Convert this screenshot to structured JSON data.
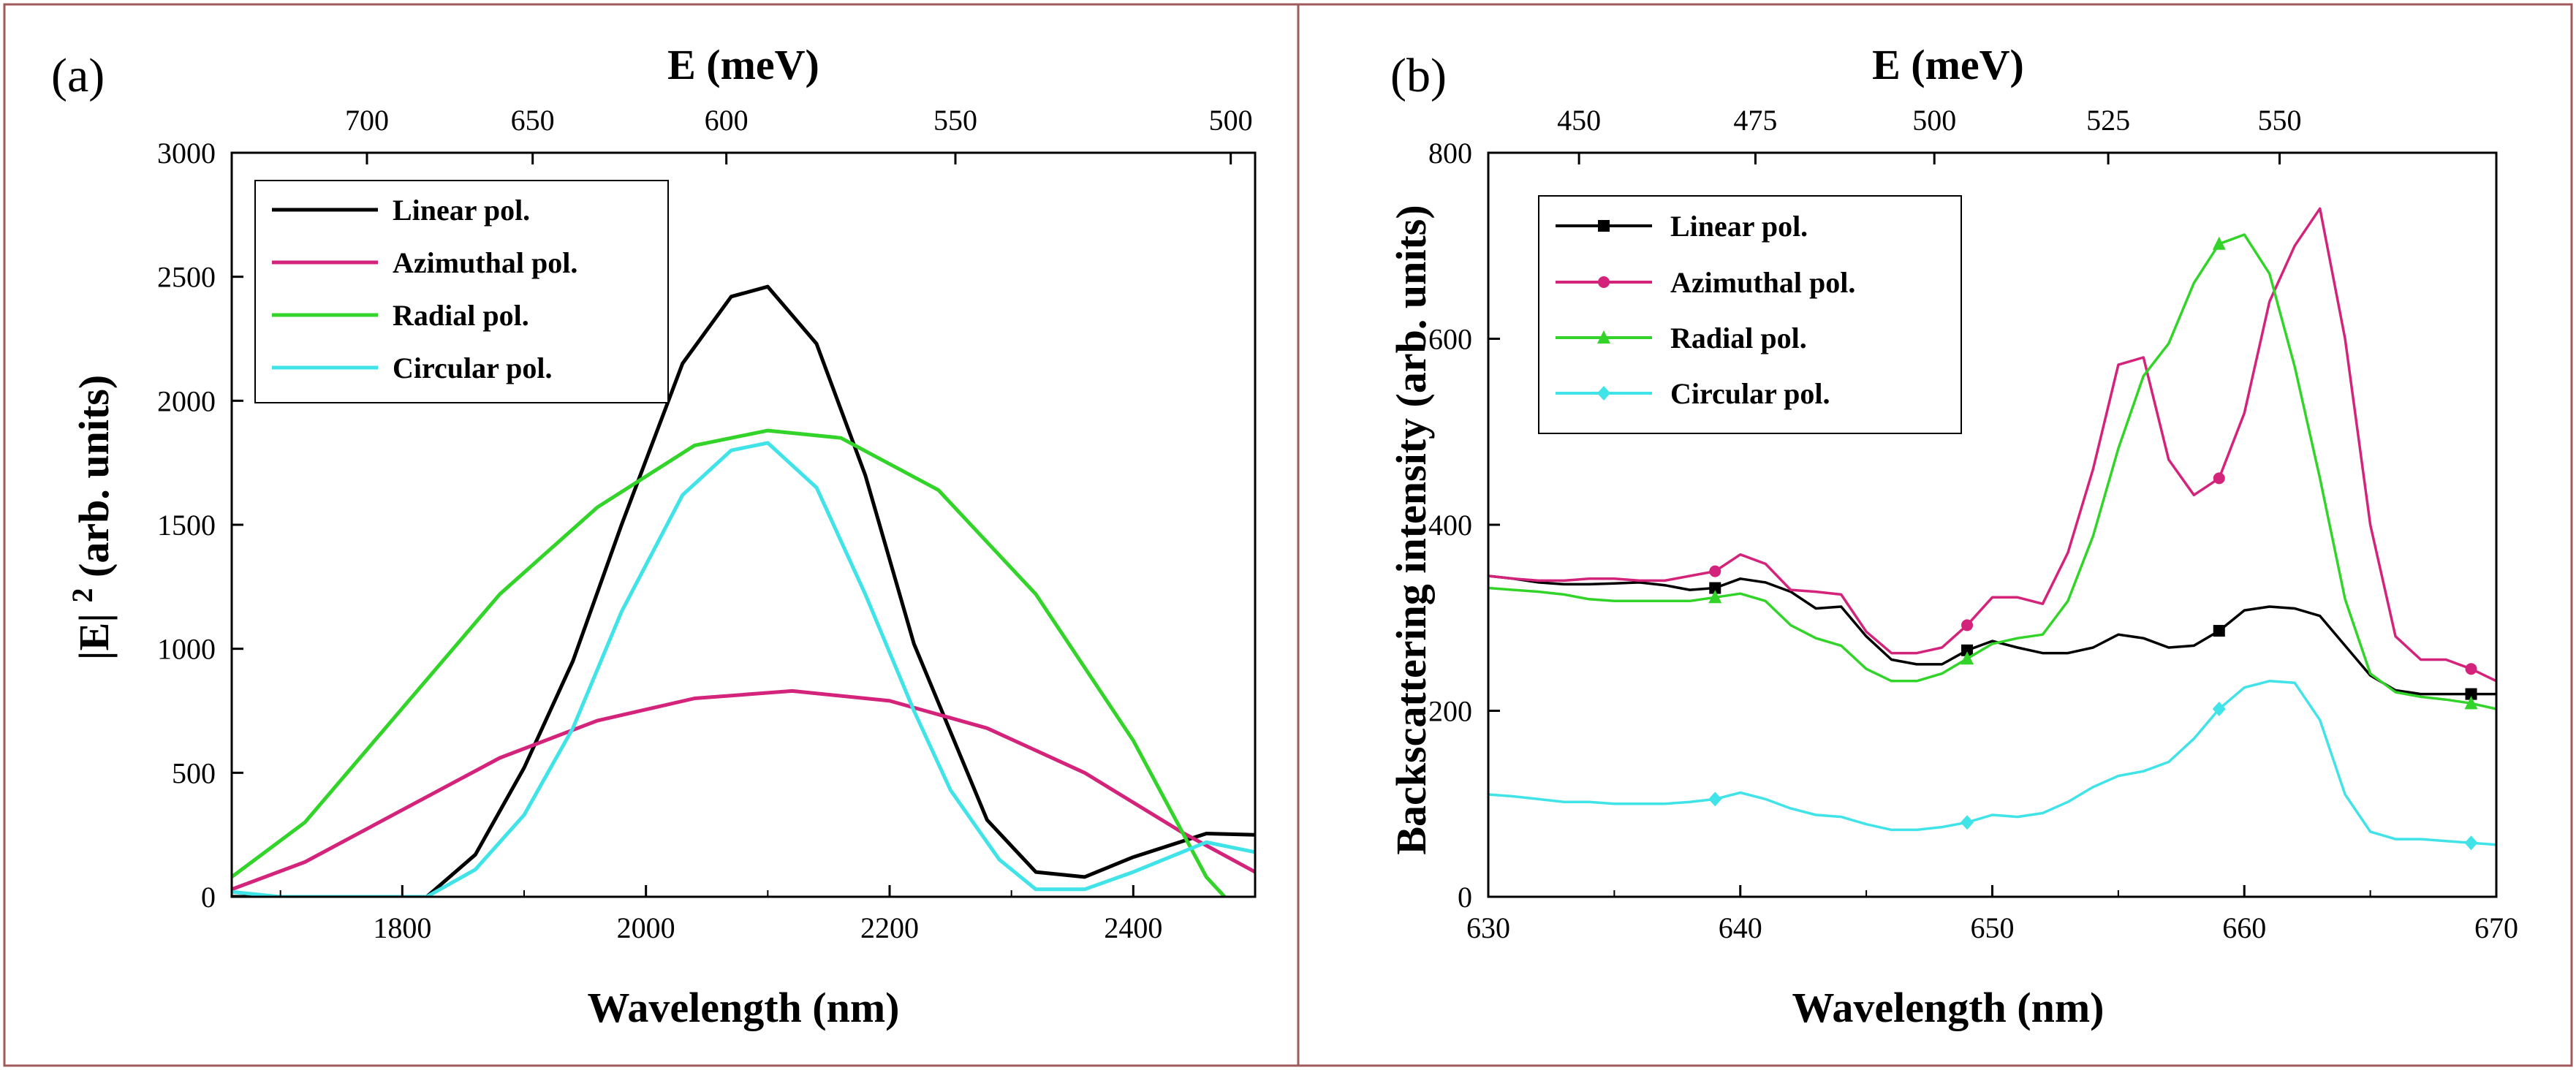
{
  "chart_data": [
    {
      "type": "line",
      "panel_label": "(a)",
      "title": "",
      "xlabel": "Wavelength (nm)",
      "ylabel": "|E| ",
      "ylabel_superscript": "2",
      "ylabel_suffix": " (arb. units)",
      "xlim": [
        1660,
        2500
      ],
      "ylim": [
        0,
        3000
      ],
      "xticks": [
        1800,
        2000,
        2200,
        2400
      ],
      "yticks": [
        0,
        500,
        1000,
        1500,
        2000,
        2500,
        3000
      ],
      "top_axis": {
        "label": "E (meV)",
        "ticks": [
          {
            "label": "700",
            "at_wavelength": 1771
          },
          {
            "label": "650",
            "at_wavelength": 1907
          },
          {
            "label": "600",
            "at_wavelength": 2066
          },
          {
            "label": "550",
            "at_wavelength": 2254
          },
          {
            "label": "500",
            "at_wavelength": 2480
          }
        ]
      },
      "legend_position": "top-left",
      "grid": false,
      "series": [
        {
          "name": "Linear pol.",
          "color": "#000000",
          "marker": "none",
          "x": [
            1660,
            1700,
            1760,
            1820,
            1860,
            1900,
            1940,
            1980,
            2030,
            2070,
            2100,
            2140,
            2180,
            2220,
            2280,
            2320,
            2360,
            2400,
            2460,
            2500
          ],
          "y": [
            0,
            0,
            0,
            0,
            170,
            520,
            950,
            1500,
            2150,
            2420,
            2460,
            2230,
            1700,
            1020,
            310,
            100,
            80,
            160,
            255,
            250
          ]
        },
        {
          "name": "Azimuthal pol.",
          "color": "#d4237a",
          "marker": "none",
          "x": [
            1660,
            1720,
            1800,
            1880,
            1960,
            2040,
            2120,
            2200,
            2280,
            2360,
            2440,
            2500
          ],
          "y": [
            30,
            140,
            350,
            560,
            710,
            800,
            830,
            790,
            680,
            500,
            260,
            100
          ]
        },
        {
          "name": "Radial pol.",
          "color": "#33d42a",
          "marker": "none",
          "x": [
            1660,
            1720,
            1800,
            1880,
            1960,
            2040,
            2100,
            2160,
            2240,
            2320,
            2400,
            2460,
            2475
          ],
          "y": [
            80,
            300,
            760,
            1220,
            1570,
            1820,
            1880,
            1850,
            1640,
            1220,
            630,
            80,
            0
          ]
        },
        {
          "name": "Circular pol.",
          "color": "#3fe3e8",
          "marker": "none",
          "x": [
            1660,
            1700,
            1760,
            1820,
            1860,
            1900,
            1940,
            1980,
            2030,
            2070,
            2100,
            2140,
            2180,
            2220,
            2250,
            2290,
            2320,
            2360,
            2400,
            2460,
            2500
          ],
          "y": [
            20,
            0,
            0,
            0,
            110,
            330,
            680,
            1150,
            1620,
            1800,
            1830,
            1650,
            1220,
            750,
            430,
            150,
            30,
            30,
            100,
            220,
            180
          ]
        }
      ]
    },
    {
      "type": "line",
      "panel_label": "(b)",
      "title": "",
      "xlabel": "Wavelength (nm)",
      "ylabel": "Backscattering intensity (arb. units)",
      "xlim": [
        630,
        670
      ],
      "ylim": [
        0,
        800
      ],
      "xticks": [
        630,
        640,
        650,
        660,
        670
      ],
      "yticks": [
        0,
        200,
        400,
        600,
        800
      ],
      "top_axis": {
        "label": "E (meV)",
        "ticks": [
          {
            "label": "450",
            "at_wavelength": 633.6
          },
          {
            "label": "475",
            "at_wavelength": 640.6
          },
          {
            "label": "500",
            "at_wavelength": 647.7
          },
          {
            "label": "525",
            "at_wavelength": 654.6
          },
          {
            "label": "550",
            "at_wavelength": 661.4
          }
        ]
      },
      "legend_position": "top-left",
      "grid": false,
      "series": [
        {
          "name": "Linear pol.",
          "color": "#000000",
          "marker": "square",
          "x": [
            630,
            631,
            632,
            633,
            634,
            635,
            636,
            637,
            638,
            639,
            640,
            641,
            642,
            643,
            644,
            645,
            646,
            647,
            648,
            649,
            650,
            651,
            652,
            653,
            654,
            655,
            656,
            657,
            658,
            659,
            660,
            661,
            662,
            663,
            664,
            665,
            666,
            667,
            668,
            669,
            670
          ],
          "y": [
            345,
            342,
            338,
            336,
            336,
            337,
            338,
            335,
            330,
            332,
            342,
            338,
            328,
            310,
            312,
            280,
            255,
            250,
            250,
            265,
            275,
            268,
            262,
            262,
            268,
            282,
            278,
            268,
            270,
            286,
            308,
            312,
            310,
            302,
            270,
            238,
            222,
            218,
            218,
            218,
            218
          ],
          "marker_indices": [
            9,
            19,
            29,
            39
          ]
        },
        {
          "name": "Azimuthal pol.",
          "color": "#d4237a",
          "marker": "circle",
          "x": [
            630,
            631,
            632,
            633,
            634,
            635,
            636,
            637,
            638,
            639,
            640,
            641,
            642,
            643,
            644,
            645,
            646,
            647,
            648,
            649,
            650,
            651,
            652,
            653,
            654,
            655,
            656,
            657,
            658,
            659,
            660,
            661,
            662,
            663,
            664,
            665,
            666,
            667,
            668,
            669,
            670
          ],
          "y": [
            345,
            342,
            340,
            340,
            342,
            342,
            340,
            340,
            345,
            350,
            368,
            358,
            330,
            328,
            325,
            285,
            262,
            262,
            268,
            292,
            322,
            322,
            315,
            370,
            460,
            572,
            580,
            470,
            432,
            450,
            520,
            640,
            700,
            740,
            600,
            400,
            280,
            255,
            255,
            245,
            232
          ],
          "marker_indices": [
            9,
            19,
            29,
            39
          ]
        },
        {
          "name": "Radial pol.",
          "color": "#33d42a",
          "marker": "triangle",
          "x": [
            630,
            631,
            632,
            633,
            634,
            635,
            636,
            637,
            638,
            639,
            640,
            641,
            642,
            643,
            644,
            645,
            646,
            647,
            648,
            649,
            650,
            651,
            652,
            653,
            654,
            655,
            656,
            657,
            658,
            659,
            660,
            661,
            662,
            663,
            664,
            665,
            666,
            667,
            668,
            669,
            670
          ],
          "y": [
            332,
            330,
            328,
            325,
            320,
            318,
            318,
            318,
            318,
            322,
            326,
            318,
            292,
            278,
            270,
            245,
            232,
            232,
            240,
            256,
            272,
            278,
            282,
            318,
            388,
            482,
            560,
            595,
            660,
            702,
            712,
            670,
            570,
            450,
            320,
            240,
            220,
            215,
            212,
            208,
            202
          ],
          "marker_indices": [
            9,
            19,
            29,
            39
          ]
        },
        {
          "name": "Circular pol.",
          "color": "#3fe3e8",
          "marker": "diamond",
          "x": [
            630,
            631,
            632,
            633,
            634,
            635,
            636,
            637,
            638,
            639,
            640,
            641,
            642,
            643,
            644,
            645,
            646,
            647,
            648,
            649,
            650,
            651,
            652,
            653,
            654,
            655,
            656,
            657,
            658,
            659,
            660,
            661,
            662,
            663,
            664,
            665,
            666,
            667,
            668,
            669,
            670
          ],
          "y": [
            110,
            108,
            105,
            102,
            102,
            100,
            100,
            100,
            102,
            105,
            112,
            105,
            95,
            88,
            86,
            78,
            72,
            72,
            75,
            80,
            88,
            86,
            90,
            102,
            118,
            130,
            135,
            145,
            170,
            202,
            225,
            232,
            230,
            190,
            110,
            70,
            62,
            62,
            60,
            58,
            56
          ],
          "marker_indices": [
            9,
            19,
            29,
            39
          ]
        }
      ]
    }
  ]
}
